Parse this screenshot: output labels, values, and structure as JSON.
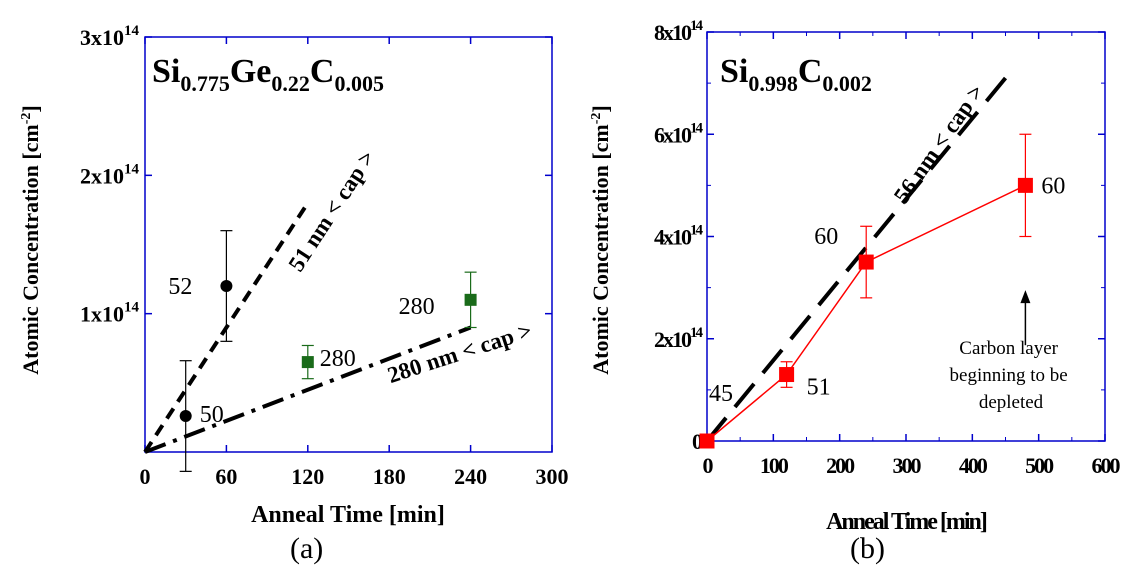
{
  "figure": {
    "panel_a_label": "(a)",
    "panel_b_label": "(b)"
  },
  "chart_data": [
    {
      "panel": "(a)",
      "type": "scatter",
      "title": {
        "base": [
          "Si",
          "Ge",
          "C"
        ],
        "subs": [
          "0.775",
          "0.22",
          "0.005"
        ]
      },
      "xlabel": "Anneal Time [min]",
      "ylabel": "Atomic Concentration [cm",
      "ylabel_sup": "-2",
      "ylabel_tail": "]",
      "xlim": [
        0,
        300
      ],
      "ylim": [
        0,
        300000000000000.0
      ],
      "x_ticks": [
        0,
        60,
        120,
        180,
        240,
        300
      ],
      "x_tick_labels": [
        "0",
        "60",
        "120",
        "180",
        "240",
        "300"
      ],
      "y_ticks": [
        100000000000000.0,
        200000000000000.0,
        300000000000000.0
      ],
      "y_tick_labels": [
        {
          "mant": "1x10",
          "exp": "14"
        },
        {
          "mant": "2x10",
          "exp": "14"
        },
        {
          "mant": "3x10",
          "exp": "14"
        }
      ],
      "series": [
        {
          "marker": "circle",
          "color": "#000000",
          "points": [
            {
              "x": 30,
              "y": 26000000000000.0,
              "err": 40000000000000.0,
              "label": "50"
            },
            {
              "x": 60,
              "y": 120000000000000.0,
              "err": 40000000000000.0,
              "label": "52"
            }
          ]
        },
        {
          "marker": "square",
          "color": "#1a6b1a",
          "points": [
            {
              "x": 120,
              "y": 65000000000000.0,
              "err": 12000000000000.0,
              "label": "280"
            },
            {
              "x": 240,
              "y": 110000000000000.0,
              "err": 20000000000000.0,
              "label": "280"
            }
          ]
        }
      ],
      "lines": [
        {
          "style": "dash",
          "x": [
            0,
            120
          ],
          "y": [
            0,
            180000000000000.0
          ],
          "label": "51 nm < cap >"
        },
        {
          "style": "dashdot",
          "x": [
            0,
            240
          ],
          "y": [
            0,
            90000000000000.0
          ],
          "label": "280 nm < cap >"
        }
      ]
    },
    {
      "panel": "(b)",
      "type": "line",
      "title": {
        "base": [
          "Si",
          "C"
        ],
        "subs": [
          "0.998",
          "0.002"
        ]
      },
      "xlabel": "Anneal Time [min]",
      "ylabel": "Atomic Concentration [cm",
      "ylabel_sup": "-2",
      "ylabel_tail": "]",
      "xlim": [
        0,
        600
      ],
      "ylim": [
        0,
        800000000000000.0
      ],
      "x_ticks": [
        0,
        100,
        200,
        300,
        400,
        500,
        600
      ],
      "x_tick_labels": [
        "0",
        "100",
        "200",
        "300",
        "400",
        "500",
        "600"
      ],
      "y_ticks": [
        0,
        200000000000000.0,
        400000000000000.0,
        600000000000000.0,
        800000000000000.0
      ],
      "y_tick_labels": [
        {
          "mant": "0",
          "exp": ""
        },
        {
          "mant": "2x10",
          "exp": "14"
        },
        {
          "mant": "4x10",
          "exp": "14"
        },
        {
          "mant": "6x10",
          "exp": "14"
        },
        {
          "mant": "8x10",
          "exp": "14"
        }
      ],
      "series": [
        {
          "marker": "square",
          "color": "#ff0000",
          "points": [
            {
              "x": 0,
              "y": 0,
              "err": 0,
              "label": "45"
            },
            {
              "x": 120,
              "y": 130000000000000.0,
              "err": 25000000000000.0,
              "label": "51"
            },
            {
              "x": 240,
              "y": 350000000000000.0,
              "err": 70000000000000.0,
              "label": "60"
            },
            {
              "x": 480,
              "y": 500000000000000.0,
              "err": 100000000000000.0,
              "label": "60"
            }
          ]
        }
      ],
      "lines": [
        {
          "style": "longdash",
          "x": [
            0,
            450
          ],
          "y": [
            0,
            710000000000000.0
          ],
          "label": "56 nm < cap >"
        }
      ],
      "annotation": {
        "lines": [
          "Carbon layer",
          "beginning to be",
          "depleted"
        ],
        "arrow_to": {
          "x": 480,
          "y": 295000000000000.0
        }
      }
    }
  ]
}
